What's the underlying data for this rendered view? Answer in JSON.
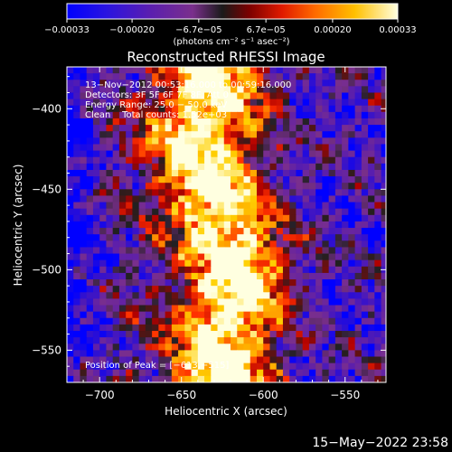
{
  "chart_data": {
    "type": "heatmap",
    "title": "Reconstructed RHESSI Image",
    "xlabel": "Heliocentric X (arcsec)",
    "ylabel": "Heliocentric Y (arcsec)",
    "xlim": [
      -720,
      -525
    ],
    "ylim": [
      -570,
      -374
    ],
    "xticks": [
      -700,
      -650,
      -600,
      -550
    ],
    "xtick_labels": [
      "−700",
      "−650",
      "−600",
      "−550"
    ],
    "yticks": [
      -400,
      -450,
      -500,
      -550
    ],
    "ytick_labels": [
      "−400",
      "−450",
      "−500",
      "−550"
    ],
    "colorbar": {
      "range": [
        -0.00033,
        0.00033
      ],
      "ticks": [
        -0.00033,
        -0.0002,
        -6.7e-05,
        6.7e-05,
        0.0002,
        0.00033
      ],
      "tick_labels": [
        "−0.00033",
        "−0.00020",
        "−6.7e−05",
        "6.7e−05",
        "0.00020",
        "0.00033"
      ],
      "unit_label": "(photons cm⁻² s⁻¹ asec⁻²)"
    },
    "annotations": {
      "time_range": "13−Nov−2012 00:53:16.000 to 00:59:16.000",
      "detectors": "Detectors: 3F 5F 6F 7F 8F, Att 0",
      "energy": "Energy Range: 25.0 − 50.0 keV",
      "clean": "Clean    Total counts: 1.52e+03",
      "peak": "Position of Peak = [−613,−515]"
    },
    "peak": [
      -613,
      -515
    ],
    "ridge": {
      "description_points_y": [
        -380,
        -420,
        -460,
        -500,
        -540
      ],
      "center_x": [
        -632,
        -640,
        -630,
        -615,
        -625
      ]
    },
    "colormap": [
      "#0000ff",
      "#3010d0",
      "#6020a8",
      "#7a2f8c",
      "#202020",
      "#b00000",
      "#ff3000",
      "#ff9000",
      "#ffd000",
      "#ffffe0"
    ]
  },
  "footer": {
    "timestamp": "15−May−2022 23:58"
  }
}
